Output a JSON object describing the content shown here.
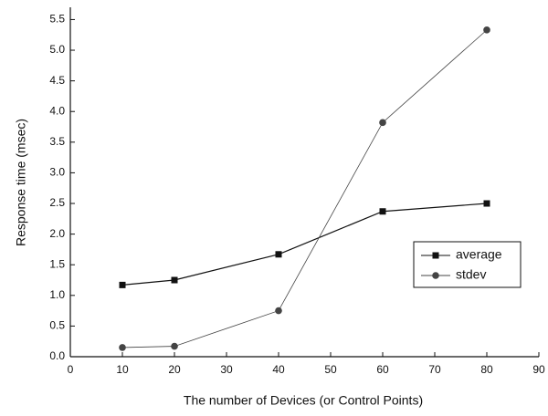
{
  "chart_data": {
    "type": "line",
    "x_label": "The number of Devices (or Control Points)",
    "y_label": "Response time (msec)",
    "x": [
      10,
      20,
      40,
      60,
      80
    ],
    "series": [
      {
        "name": "average",
        "color": "#111111",
        "marker": "square",
        "values": [
          1.17,
          1.25,
          1.67,
          2.37,
          2.5
        ]
      },
      {
        "name": "stdev",
        "color": "#444444",
        "marker": "circle",
        "values": [
          0.15,
          0.17,
          0.75,
          3.82,
          5.33
        ]
      }
    ],
    "xlim": [
      0,
      90
    ],
    "xticks": [
      0,
      10,
      20,
      30,
      40,
      50,
      60,
      70,
      80,
      90
    ],
    "ylim": [
      0,
      5.7
    ],
    "yticks": [
      {
        "value": 0,
        "label": "0.0"
      },
      {
        "value": 0.5,
        "label": "0.5"
      },
      {
        "value": 1,
        "label": "1.0"
      },
      {
        "value": 1.5,
        "label": "1.5"
      },
      {
        "value": 2,
        "label": "2.0"
      },
      {
        "value": 2.5,
        "label": "2.5"
      },
      {
        "value": 3,
        "label": "3.0"
      },
      {
        "value": 3.5,
        "label": "3.5"
      },
      {
        "value": 4,
        "label": "4.0"
      },
      {
        "value": 4.5,
        "label": "4.5"
      },
      {
        "value": 5,
        "label": "5.0"
      },
      {
        "value": 5.5,
        "label": "5.5"
      }
    ],
    "grid": false,
    "legend": "right"
  }
}
